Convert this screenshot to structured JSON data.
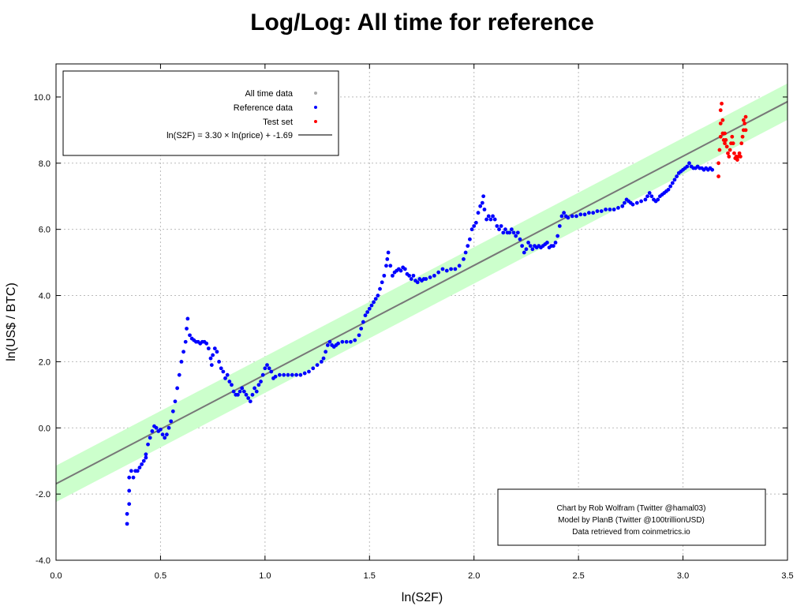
{
  "chart_data": {
    "type": "scatter",
    "title": "Log/Log: All time for reference",
    "xlabel": "ln(S2F)",
    "ylabel": "ln(US$ / BTC)",
    "xlim": [
      0.0,
      3.5
    ],
    "ylim": [
      -4.0,
      11.0
    ],
    "x_ticks": [
      "0.0",
      "0.5",
      "1.0",
      "1.5",
      "2.0",
      "2.5",
      "3.0",
      "3.5"
    ],
    "y_ticks": [
      "-4.0",
      "-2.0",
      "0.0",
      "2.0",
      "4.0",
      "6.0",
      "8.0",
      "10.0"
    ],
    "grid": true,
    "legend_position": "top-left",
    "legend": [
      {
        "label": "All time data",
        "color": "#aaaaaa",
        "kind": "point"
      },
      {
        "label": "Reference data",
        "color": "#0000ff",
        "kind": "point"
      },
      {
        "label": "Test set",
        "color": "#ff0000",
        "kind": "point"
      },
      {
        "label": "ln(S2F) = 3.30 × ln(price) + -1.69",
        "color": "#777777",
        "kind": "line"
      }
    ],
    "fit_line": {
      "slope": 3.3,
      "intercept": -1.69
    },
    "band": {
      "offset": 0.55,
      "color": "#ccffcc"
    },
    "series": [
      {
        "name": "Reference data",
        "color": "#0000ff",
        "points": [
          [
            0.34,
            -2.9
          ],
          [
            0.34,
            -2.6
          ],
          [
            0.35,
            -2.3
          ],
          [
            0.35,
            -1.9
          ],
          [
            0.35,
            -1.5
          ],
          [
            0.36,
            -1.3
          ],
          [
            0.37,
            -1.5
          ],
          [
            0.38,
            -1.3
          ],
          [
            0.39,
            -1.3
          ],
          [
            0.4,
            -1.2
          ],
          [
            0.41,
            -1.1
          ],
          [
            0.42,
            -1.0
          ],
          [
            0.43,
            -0.9
          ],
          [
            0.43,
            -0.8
          ],
          [
            0.44,
            -0.5
          ],
          [
            0.45,
            -0.3
          ],
          [
            0.46,
            -0.1
          ],
          [
            0.47,
            0.05
          ],
          [
            0.48,
            0.0
          ],
          [
            0.49,
            -0.1
          ],
          [
            0.5,
            -0.05
          ],
          [
            0.51,
            -0.2
          ],
          [
            0.52,
            -0.3
          ],
          [
            0.53,
            -0.2
          ],
          [
            0.54,
            0.0
          ],
          [
            0.55,
            0.2
          ],
          [
            0.56,
            0.5
          ],
          [
            0.57,
            0.8
          ],
          [
            0.58,
            1.2
          ],
          [
            0.59,
            1.6
          ],
          [
            0.6,
            2.0
          ],
          [
            0.61,
            2.3
          ],
          [
            0.62,
            2.6
          ],
          [
            0.625,
            3.0
          ],
          [
            0.63,
            3.3
          ],
          [
            0.64,
            2.8
          ],
          [
            0.65,
            2.7
          ],
          [
            0.66,
            2.65
          ],
          [
            0.67,
            2.6
          ],
          [
            0.68,
            2.6
          ],
          [
            0.69,
            2.55
          ],
          [
            0.7,
            2.6
          ],
          [
            0.71,
            2.6
          ],
          [
            0.72,
            2.55
          ],
          [
            0.73,
            2.4
          ],
          [
            0.74,
            2.1
          ],
          [
            0.745,
            1.9
          ],
          [
            0.75,
            2.2
          ],
          [
            0.76,
            2.4
          ],
          [
            0.77,
            2.3
          ],
          [
            0.78,
            2.0
          ],
          [
            0.79,
            1.8
          ],
          [
            0.8,
            1.7
          ],
          [
            0.81,
            1.5
          ],
          [
            0.82,
            1.6
          ],
          [
            0.83,
            1.4
          ],
          [
            0.84,
            1.3
          ],
          [
            0.85,
            1.1
          ],
          [
            0.86,
            1.0
          ],
          [
            0.87,
            1.0
          ],
          [
            0.88,
            1.1
          ],
          [
            0.89,
            1.2
          ],
          [
            0.9,
            1.1
          ],
          [
            0.91,
            1.0
          ],
          [
            0.92,
            0.9
          ],
          [
            0.93,
            0.8
          ],
          [
            0.94,
            1.0
          ],
          [
            0.95,
            1.2
          ],
          [
            0.96,
            1.1
          ],
          [
            0.97,
            1.3
          ],
          [
            0.98,
            1.4
          ],
          [
            0.99,
            1.6
          ],
          [
            1.0,
            1.8
          ],
          [
            1.01,
            1.9
          ],
          [
            1.02,
            1.8
          ],
          [
            1.03,
            1.7
          ],
          [
            1.04,
            1.5
          ],
          [
            1.05,
            1.55
          ],
          [
            1.07,
            1.6
          ],
          [
            1.09,
            1.6
          ],
          [
            1.11,
            1.6
          ],
          [
            1.13,
            1.6
          ],
          [
            1.15,
            1.6
          ],
          [
            1.17,
            1.6
          ],
          [
            1.19,
            1.65
          ],
          [
            1.21,
            1.7
          ],
          [
            1.23,
            1.8
          ],
          [
            1.25,
            1.9
          ],
          [
            1.27,
            2.0
          ],
          [
            1.28,
            2.1
          ],
          [
            1.29,
            2.3
          ],
          [
            1.3,
            2.5
          ],
          [
            1.31,
            2.6
          ],
          [
            1.32,
            2.5
          ],
          [
            1.33,
            2.45
          ],
          [
            1.34,
            2.5
          ],
          [
            1.35,
            2.55
          ],
          [
            1.37,
            2.6
          ],
          [
            1.39,
            2.6
          ],
          [
            1.41,
            2.6
          ],
          [
            1.43,
            2.65
          ],
          [
            1.45,
            2.8
          ],
          [
            1.46,
            3.0
          ],
          [
            1.47,
            3.2
          ],
          [
            1.48,
            3.4
          ],
          [
            1.49,
            3.5
          ],
          [
            1.5,
            3.6
          ],
          [
            1.51,
            3.7
          ],
          [
            1.52,
            3.8
          ],
          [
            1.53,
            3.9
          ],
          [
            1.54,
            4.0
          ],
          [
            1.55,
            4.2
          ],
          [
            1.56,
            4.4
          ],
          [
            1.57,
            4.6
          ],
          [
            1.58,
            4.9
          ],
          [
            1.585,
            5.1
          ],
          [
            1.59,
            5.3
          ],
          [
            1.6,
            4.9
          ],
          [
            1.61,
            4.6
          ],
          [
            1.62,
            4.7
          ],
          [
            1.63,
            4.75
          ],
          [
            1.64,
            4.8
          ],
          [
            1.65,
            4.75
          ],
          [
            1.66,
            4.85
          ],
          [
            1.67,
            4.8
          ],
          [
            1.68,
            4.65
          ],
          [
            1.69,
            4.6
          ],
          [
            1.7,
            4.5
          ],
          [
            1.71,
            4.6
          ],
          [
            1.72,
            4.45
          ],
          [
            1.73,
            4.4
          ],
          [
            1.74,
            4.5
          ],
          [
            1.75,
            4.45
          ],
          [
            1.76,
            4.5
          ],
          [
            1.77,
            4.5
          ],
          [
            1.79,
            4.55
          ],
          [
            1.81,
            4.6
          ],
          [
            1.83,
            4.7
          ],
          [
            1.85,
            4.8
          ],
          [
            1.87,
            4.75
          ],
          [
            1.89,
            4.8
          ],
          [
            1.91,
            4.8
          ],
          [
            1.93,
            4.9
          ],
          [
            1.95,
            5.1
          ],
          [
            1.96,
            5.3
          ],
          [
            1.97,
            5.5
          ],
          [
            1.98,
            5.7
          ],
          [
            1.99,
            6.0
          ],
          [
            2.0,
            6.1
          ],
          [
            2.01,
            6.2
          ],
          [
            2.02,
            6.5
          ],
          [
            2.03,
            6.7
          ],
          [
            2.04,
            6.8
          ],
          [
            2.045,
            7.0
          ],
          [
            2.05,
            6.6
          ],
          [
            2.06,
            6.3
          ],
          [
            2.07,
            6.4
          ],
          [
            2.08,
            6.3
          ],
          [
            2.09,
            6.4
          ],
          [
            2.1,
            6.3
          ],
          [
            2.11,
            6.1
          ],
          [
            2.12,
            6.0
          ],
          [
            2.13,
            6.1
          ],
          [
            2.14,
            5.9
          ],
          [
            2.15,
            6.0
          ],
          [
            2.16,
            5.9
          ],
          [
            2.17,
            5.9
          ],
          [
            2.18,
            6.0
          ],
          [
            2.19,
            5.9
          ],
          [
            2.2,
            5.8
          ],
          [
            2.21,
            5.9
          ],
          [
            2.22,
            5.7
          ],
          [
            2.23,
            5.5
          ],
          [
            2.24,
            5.3
          ],
          [
            2.25,
            5.4
          ],
          [
            2.26,
            5.6
          ],
          [
            2.27,
            5.5
          ],
          [
            2.28,
            5.4
          ],
          [
            2.29,
            5.5
          ],
          [
            2.3,
            5.45
          ],
          [
            2.31,
            5.5
          ],
          [
            2.32,
            5.45
          ],
          [
            2.33,
            5.5
          ],
          [
            2.34,
            5.55
          ],
          [
            2.35,
            5.6
          ],
          [
            2.36,
            5.45
          ],
          [
            2.37,
            5.5
          ],
          [
            2.38,
            5.5
          ],
          [
            2.39,
            5.6
          ],
          [
            2.4,
            5.8
          ],
          [
            2.41,
            6.1
          ],
          [
            2.42,
            6.4
          ],
          [
            2.43,
            6.5
          ],
          [
            2.44,
            6.4
          ],
          [
            2.45,
            6.35
          ],
          [
            2.47,
            6.4
          ],
          [
            2.49,
            6.4
          ],
          [
            2.51,
            6.45
          ],
          [
            2.53,
            6.45
          ],
          [
            2.55,
            6.5
          ],
          [
            2.57,
            6.5
          ],
          [
            2.59,
            6.55
          ],
          [
            2.61,
            6.55
          ],
          [
            2.63,
            6.6
          ],
          [
            2.65,
            6.6
          ],
          [
            2.67,
            6.6
          ],
          [
            2.69,
            6.65
          ],
          [
            2.71,
            6.7
          ],
          [
            2.72,
            6.8
          ],
          [
            2.73,
            6.9
          ],
          [
            2.74,
            6.85
          ],
          [
            2.75,
            6.8
          ],
          [
            2.76,
            6.75
          ],
          [
            2.78,
            6.8
          ],
          [
            2.8,
            6.85
          ],
          [
            2.82,
            6.9
          ],
          [
            2.83,
            7.0
          ],
          [
            2.84,
            7.1
          ],
          [
            2.85,
            7.0
          ],
          [
            2.86,
            6.9
          ],
          [
            2.87,
            6.85
          ],
          [
            2.88,
            6.9
          ],
          [
            2.89,
            7.0
          ],
          [
            2.9,
            7.05
          ],
          [
            2.91,
            7.1
          ],
          [
            2.92,
            7.15
          ],
          [
            2.93,
            7.2
          ],
          [
            2.94,
            7.3
          ],
          [
            2.95,
            7.4
          ],
          [
            2.96,
            7.5
          ],
          [
            2.97,
            7.6
          ],
          [
            2.98,
            7.7
          ],
          [
            2.99,
            7.75
          ],
          [
            3.0,
            7.8
          ],
          [
            3.01,
            7.85
          ],
          [
            3.02,
            7.9
          ],
          [
            3.03,
            8.0
          ],
          [
            3.04,
            7.9
          ],
          [
            3.05,
            7.85
          ],
          [
            3.06,
            7.85
          ],
          [
            3.07,
            7.9
          ],
          [
            3.08,
            7.85
          ],
          [
            3.09,
            7.85
          ],
          [
            3.1,
            7.8
          ],
          [
            3.11,
            7.85
          ],
          [
            3.12,
            7.8
          ],
          [
            3.13,
            7.85
          ],
          [
            3.14,
            7.8
          ]
        ]
      },
      {
        "name": "Test set",
        "color": "#ff0000",
        "points": [
          [
            3.17,
            7.6
          ],
          [
            3.17,
            8.0
          ],
          [
            3.175,
            8.4
          ],
          [
            3.18,
            8.8
          ],
          [
            3.18,
            9.2
          ],
          [
            3.18,
            9.6
          ],
          [
            3.185,
            9.8
          ],
          [
            3.19,
            9.3
          ],
          [
            3.19,
            8.9
          ],
          [
            3.195,
            8.7
          ],
          [
            3.2,
            8.6
          ],
          [
            3.2,
            8.9
          ],
          [
            3.205,
            8.7
          ],
          [
            3.21,
            8.5
          ],
          [
            3.215,
            8.3
          ],
          [
            3.22,
            8.2
          ],
          [
            3.225,
            8.4
          ],
          [
            3.23,
            8.6
          ],
          [
            3.235,
            8.8
          ],
          [
            3.24,
            8.6
          ],
          [
            3.245,
            8.3
          ],
          [
            3.25,
            8.15
          ],
          [
            3.255,
            8.2
          ],
          [
            3.26,
            8.1
          ],
          [
            3.265,
            8.2
          ],
          [
            3.27,
            8.3
          ],
          [
            3.275,
            8.2
          ],
          [
            3.28,
            8.6
          ],
          [
            3.285,
            8.8
          ],
          [
            3.29,
            9.0
          ],
          [
            3.29,
            9.3
          ],
          [
            3.295,
            9.2
          ],
          [
            3.3,
            9.0
          ],
          [
            3.3,
            9.4
          ]
        ]
      }
    ],
    "annotation": [
      "Chart by Rob Wolfram (Twitter @hamal03)",
      "Model by PlanB (Twitter @100trillionUSD)",
      "Data retrieved from coinmetrics.io"
    ]
  }
}
